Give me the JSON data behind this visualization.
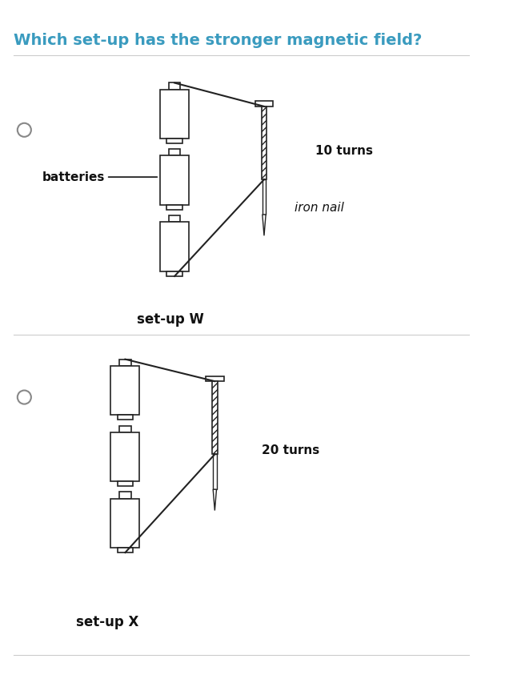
{
  "title": "Which set-up has the stronger magnetic field?",
  "title_color": "#3a9bbf",
  "title_fontsize": 14,
  "background_color": "#ffffff",
  "setup_W_label": "set-up W",
  "setup_X_label": "set-up X",
  "batteries_label": "batteries",
  "turns_W_label": "10 turns",
  "turns_X_label": "20 turns",
  "iron_nail_label": "iron nail",
  "line_color": "#222222",
  "text_color": "#111111"
}
